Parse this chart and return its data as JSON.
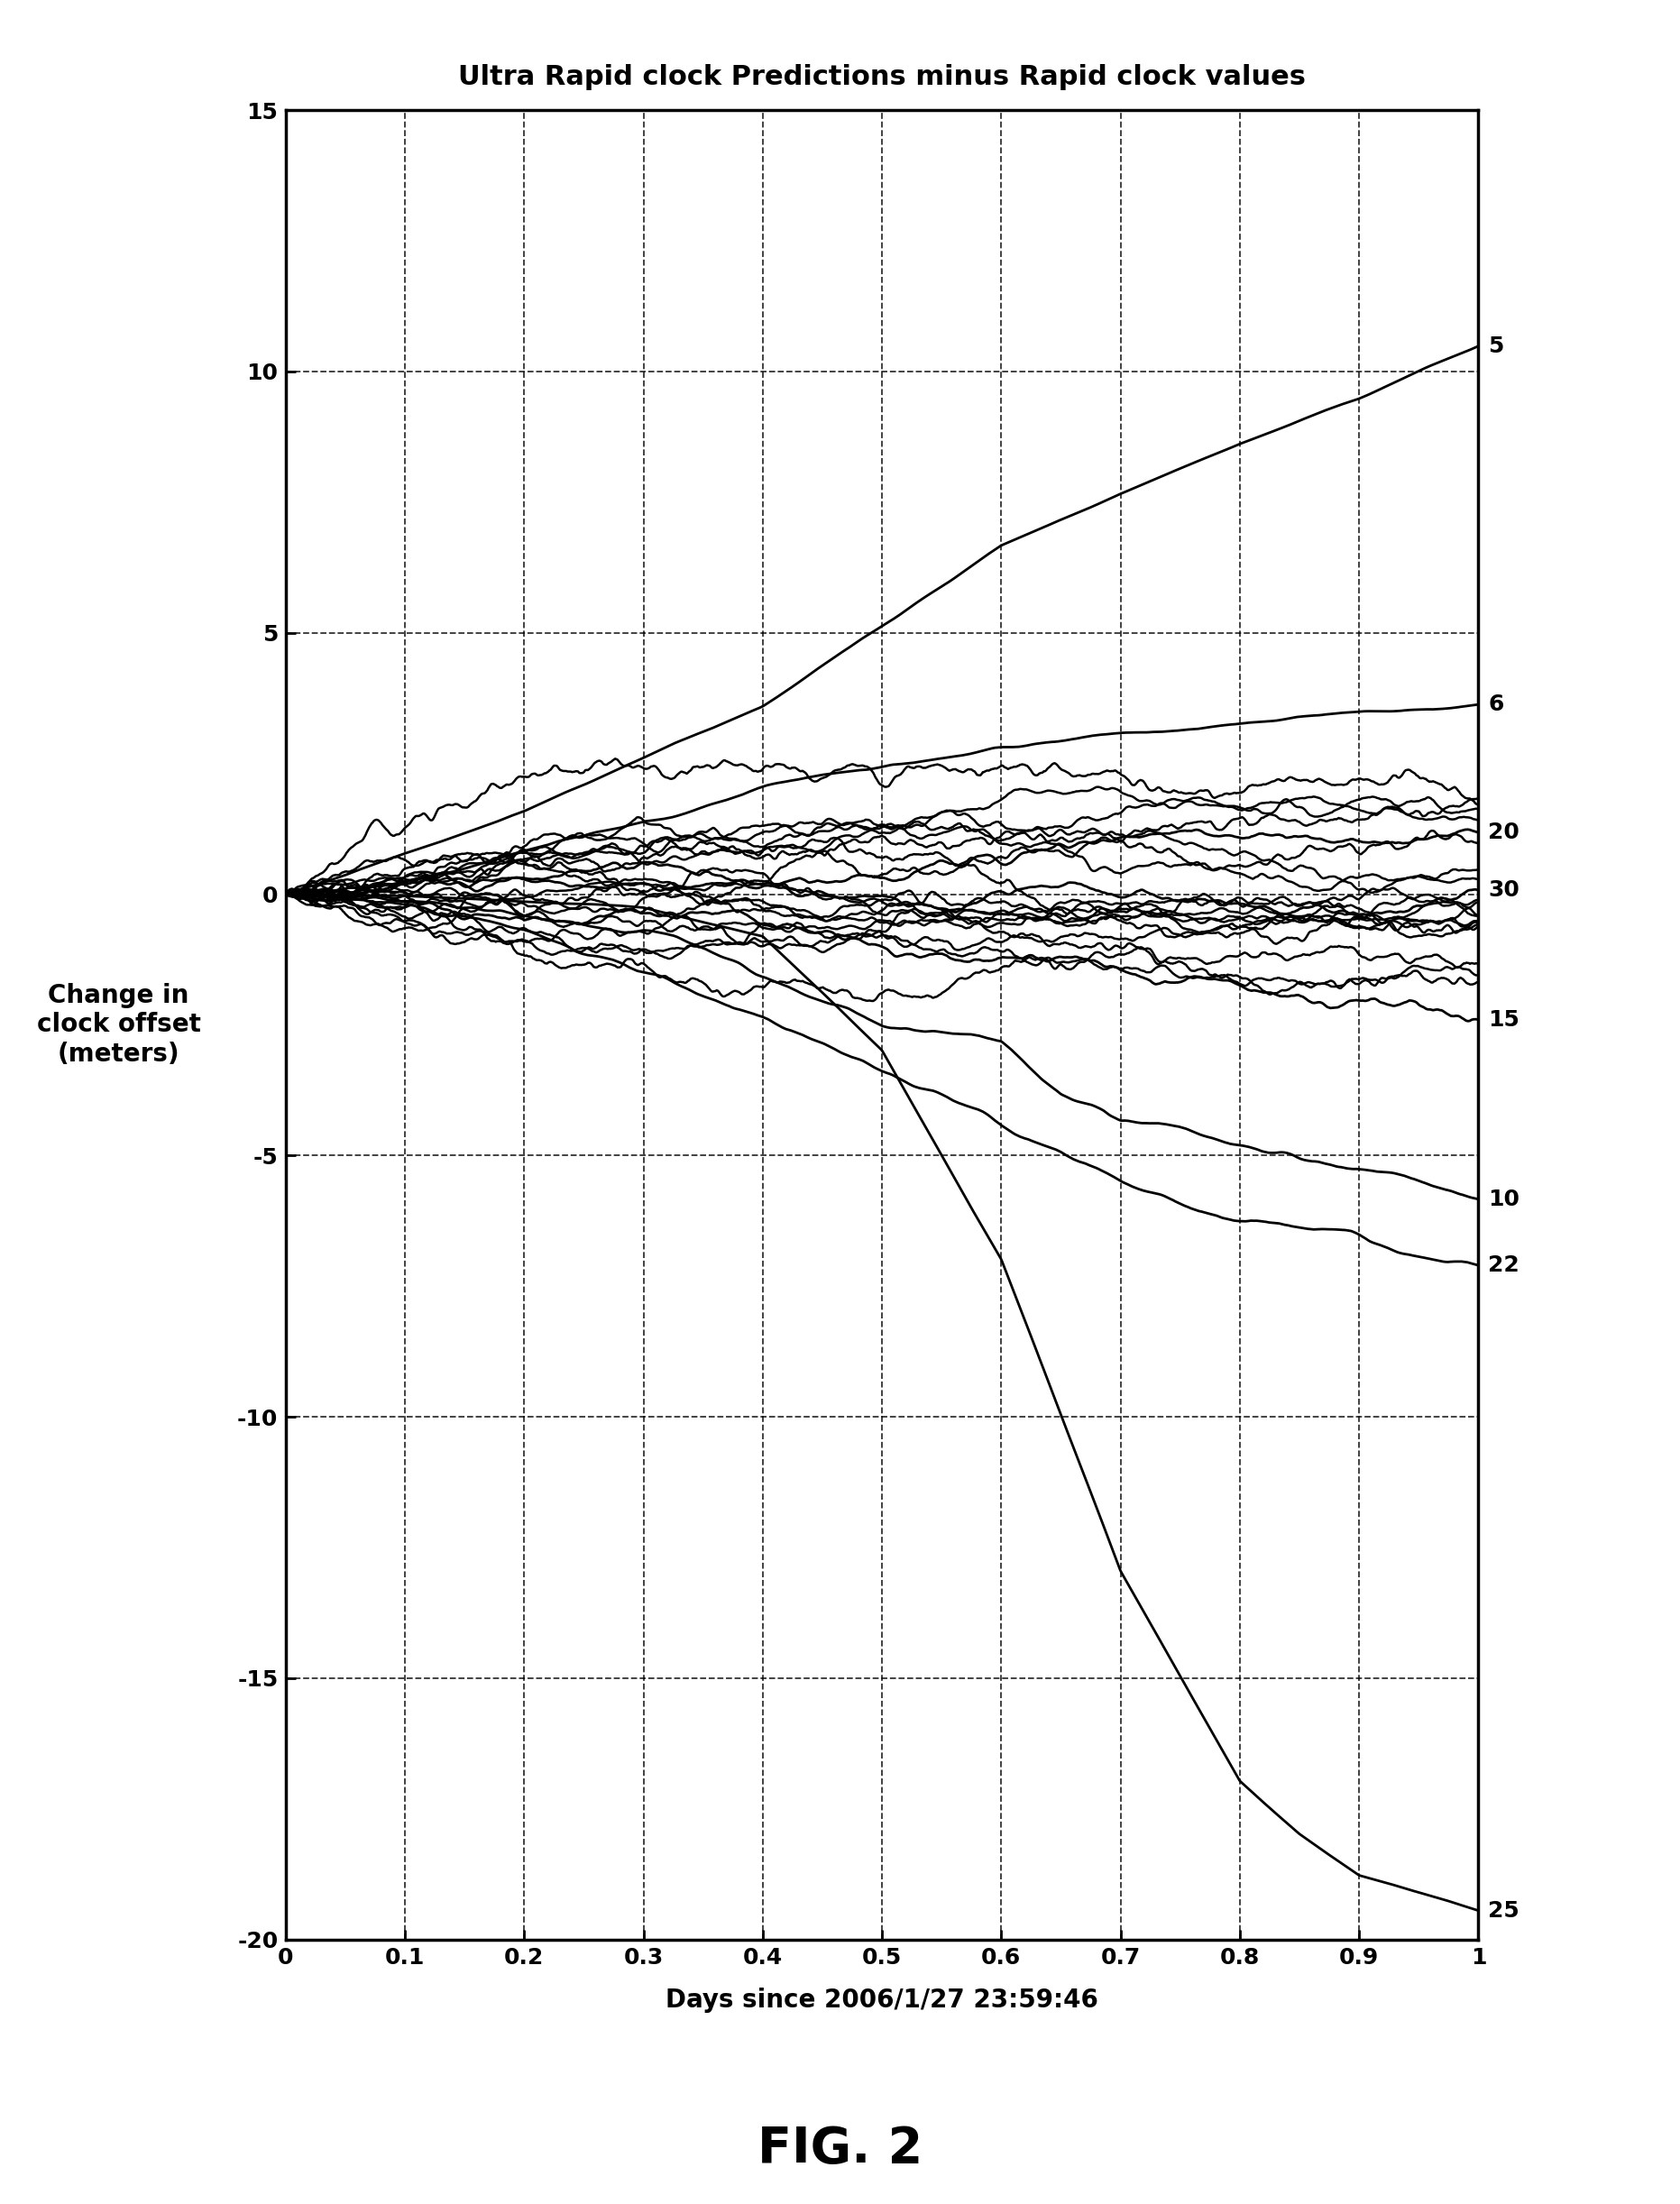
{
  "title": "Ultra Rapid clock Predictions minus Rapid clock values",
  "xlabel": "Days since 2006/1/27 23:59:46",
  "ylabel": "Change in\nclock offset\n(meters)",
  "fig_caption": "FIG. 2",
  "xlim": [
    0,
    1.0
  ],
  "ylim": [
    -20,
    15
  ],
  "xticks": [
    0,
    0.1,
    0.2,
    0.3,
    0.4,
    0.5,
    0.6,
    0.7,
    0.8,
    0.9,
    1.0
  ],
  "yticks": [
    -20,
    -15,
    -10,
    -5,
    0,
    5,
    10,
    15
  ],
  "background_color": "#ffffff",
  "line_color": "#000000",
  "title_fontsize": 22,
  "tick_fontsize": 18,
  "label_fontsize": 20,
  "caption_fontsize": 40
}
